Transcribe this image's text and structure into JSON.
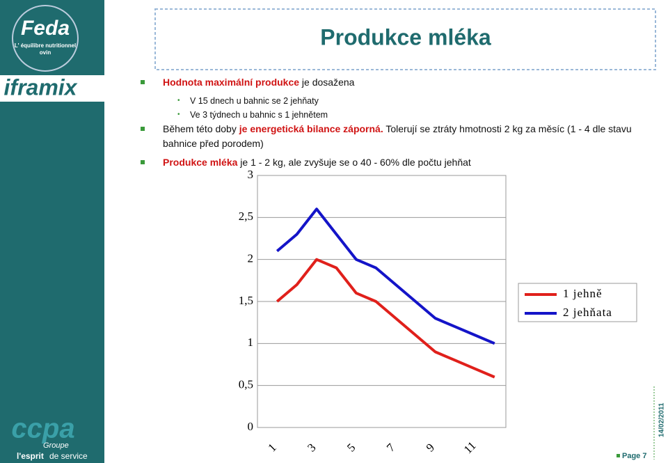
{
  "header": {
    "title": "Produkce mléka"
  },
  "logos": {
    "feda": "Feda",
    "tagline_1": "L' équilibre nutritionnel",
    "tagline_2": "ovin",
    "iframix": "iframix",
    "ccpa": "ccpa",
    "groupe": "Groupe",
    "slogan_1": "l'esprit",
    "slogan_2": "de service"
  },
  "bullets": [
    {
      "level": 1,
      "parts": [
        {
          "text": "Hodnota maximální produkce",
          "emphasis": true
        },
        {
          "text": " je dosažena"
        }
      ]
    },
    {
      "level": 2,
      "parts": [
        {
          "text": "V 15 dnech u bahnic se 2 jehňaty"
        }
      ]
    },
    {
      "level": 2,
      "parts": [
        {
          "text": "Ve 3 týdnech u bahnic s 1 jehnětem"
        }
      ]
    },
    {
      "level": 1,
      "parts": [
        {
          "text": "Během této doby "
        },
        {
          "text": "je energetická bilance záporná.",
          "emphasis": true
        },
        {
          "text": " Tolerují se ztráty hmotnosti 2 kg za měsíc (1 - 4 dle stavu bahnice před porodem)"
        }
      ]
    },
    {
      "level": 1,
      "parts": [
        {
          "text": "Produkce mléka",
          "emphasis": true
        },
        {
          "text": " je 1 - 2 kg, ale zvyšuje se o 40 - 60% dle počtu jehňat"
        }
      ]
    }
  ],
  "chart_data": {
    "type": "line",
    "categories": [
      1,
      null,
      3,
      null,
      5,
      null,
      7,
      null,
      9,
      null,
      11,
      null
    ],
    "series": [
      {
        "name": "1 jehně",
        "color": "#e0201b",
        "values": [
          1.5,
          1.7,
          2.0,
          1.9,
          1.6,
          1.5,
          1.3,
          1.1,
          0.9,
          0.8,
          0.7,
          0.6
        ]
      },
      {
        "name": "2 jehňata",
        "color": "#1414c8",
        "values": [
          2.1,
          2.3,
          2.6,
          2.3,
          2.0,
          1.9,
          1.7,
          1.5,
          1.3,
          1.2,
          1.1,
          1.0
        ]
      }
    ],
    "ylim": [
      0,
      3
    ],
    "yticks": [
      0,
      {
        "value": 0.5,
        "label": "0,5"
      },
      1,
      {
        "value": 1.5,
        "label": "1,5"
      },
      2,
      {
        "value": 2.5,
        "label": "2,5"
      },
      3
    ],
    "grid": true,
    "legend": "right"
  },
  "footer": {
    "page": "Page 7",
    "date": "14/02/2011"
  }
}
